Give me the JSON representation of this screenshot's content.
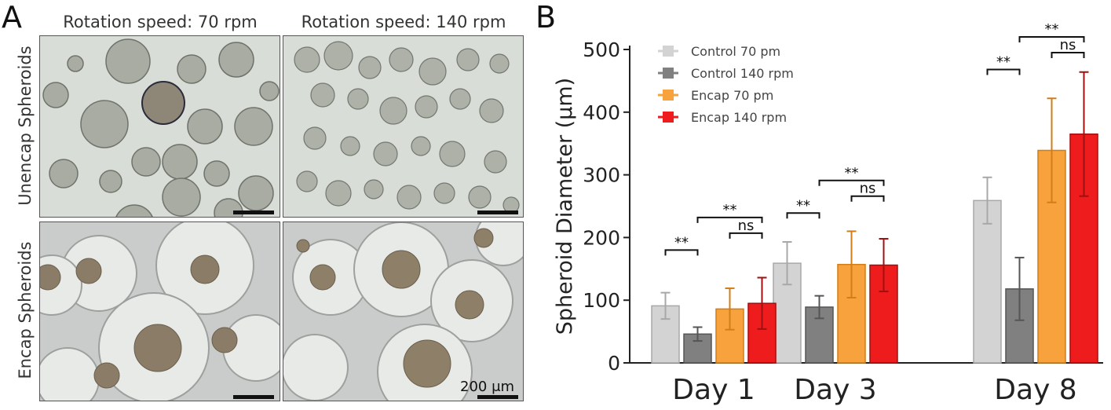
{
  "panel_a": {
    "label": "A",
    "col_titles": [
      "Rotation speed: 70 rpm",
      "Rotation speed: 140 rpm"
    ],
    "row_titles": [
      "Unencap Spheroids",
      "Encap Spheroids"
    ],
    "scale_label": "200 μm"
  },
  "panel_b": {
    "label": "B"
  },
  "colors": {
    "control_70": "#d3d3d3",
    "control_140": "#808080",
    "encap_70": "#f7a23c",
    "encap_140": "#ee1c1c"
  },
  "chart_data": {
    "type": "bar",
    "ylabel": "Spheroid Diameter (μm)",
    "ylim": [
      0,
      500
    ],
    "yticks": [
      0,
      100,
      200,
      300,
      400,
      500
    ],
    "categories": [
      "Day 1",
      "Day 3",
      "Day 8"
    ],
    "series": [
      {
        "name": "Control 70 pm",
        "color": "#d3d3d3",
        "edge": "#a8a8a8",
        "values": [
          91,
          159,
          259
        ],
        "errors": [
          21,
          34,
          37
        ]
      },
      {
        "name": "Control 140 rpm",
        "color": "#808080",
        "edge": "#555555",
        "values": [
          46,
          89,
          118
        ],
        "errors": [
          11,
          18,
          50
        ]
      },
      {
        "name": "Encap 70 pm",
        "color": "#f7a23c",
        "edge": "#d07d1a",
        "values": [
          86,
          157,
          339
        ],
        "errors": [
          33,
          53,
          83
        ]
      },
      {
        "name": "Encap 140 rpm",
        "color": "#ee1c1c",
        "edge": "#a01010",
        "values": [
          95,
          156,
          365
        ],
        "errors": [
          41,
          42,
          99
        ]
      }
    ],
    "annotations": [
      {
        "group": 0,
        "from": 0,
        "to": 1,
        "text": "**",
        "y": 180
      },
      {
        "group": 0,
        "from": 1,
        "to": 3,
        "text": "**",
        "y": 232
      },
      {
        "group": 0,
        "from": 2,
        "to": 3,
        "text": "ns",
        "y": 207
      },
      {
        "group": 1,
        "from": 0,
        "to": 1,
        "text": "**",
        "y": 239
      },
      {
        "group": 1,
        "from": 1,
        "to": 3,
        "text": "**",
        "y": 291
      },
      {
        "group": 1,
        "from": 2,
        "to": 3,
        "text": "ns",
        "y": 266
      },
      {
        "group": 2,
        "from": 0,
        "to": 1,
        "text": "**",
        "y": 468
      },
      {
        "group": 2,
        "from": 1,
        "to": 3,
        "text": "**",
        "y": 520
      },
      {
        "group": 2,
        "from": 2,
        "to": 3,
        "text": "ns",
        "y": 495
      }
    ],
    "legend_position": "top-left"
  }
}
